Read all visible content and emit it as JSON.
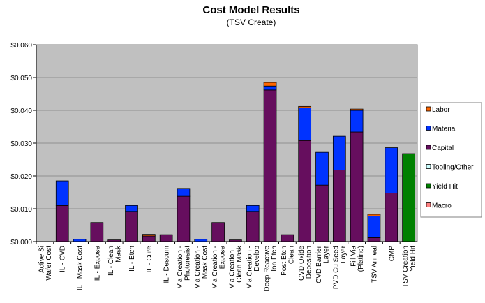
{
  "chart_data": {
    "type": "bar",
    "stacked": true,
    "title": "Cost Model Results",
    "subtitle": "(TSV Create)",
    "xlabel": "",
    "ylabel": "",
    "ylim": [
      0,
      0.06
    ],
    "yticks": [
      "$0.000",
      "$0.010",
      "$0.020",
      "$0.030",
      "$0.040",
      "$0.050",
      "$0.060"
    ],
    "grid": true,
    "legend_position": "right",
    "plot_background": "#c0c0c0",
    "categories": [
      [
        "Active Si",
        "Wafer Cost"
      ],
      [
        "IL - CVD"
      ],
      [
        "IL - Mask Cost"
      ],
      [
        "IL - Expose"
      ],
      [
        "IL - Clean",
        "Mask"
      ],
      [
        "IL - Etch"
      ],
      [
        "IL - Cure"
      ],
      [
        "IL - Descum"
      ],
      [
        "Via Creation -",
        "Photoresist"
      ],
      [
        "Via Creation -",
        "Mask Cost"
      ],
      [
        "Via Creation -",
        "Expose"
      ],
      [
        "Via Creation -",
        "Clean Mask"
      ],
      [
        "Via Creation -",
        "Develop"
      ],
      [
        "Deep Reactive",
        "Ion Etch"
      ],
      [
        "Post Etch",
        "Clean"
      ],
      [
        "CVD Oxide",
        "Deposition"
      ],
      [
        "CVD Barrier",
        "Layer"
      ],
      [
        "PVD Cu Seed",
        "Layer"
      ],
      [
        "Fill Via",
        "(Plating)"
      ],
      [
        "TSV Anneal"
      ],
      [
        "CMP"
      ],
      [
        "TSV Creation",
        "Yield Hit"
      ]
    ],
    "series": [
      {
        "name": "Labor",
        "color": "#ff6600",
        "values": [
          0,
          0,
          0,
          0,
          0,
          0,
          0.0005,
          0,
          0,
          0,
          0,
          0,
          0,
          0.0011,
          0,
          0.0004,
          0,
          0,
          0.0004,
          0.0005,
          0,
          0
        ]
      },
      {
        "name": "Material",
        "color": "#0033ff",
        "values": [
          0,
          0.0075,
          0.0007,
          0,
          0,
          0.0018,
          0,
          0,
          0.0024,
          0.0007,
          0,
          0,
          0.0018,
          0.0012,
          0,
          0.01,
          0.01,
          0.0103,
          0.0066,
          0.0066,
          0.0138,
          0
        ]
      },
      {
        "name": "Capital",
        "color": "#660e5e",
        "values": [
          0,
          0.011,
          0,
          0.0058,
          0.0005,
          0.0092,
          0.0017,
          0.0021,
          0.0138,
          0,
          0.0058,
          0.0005,
          0.0092,
          0.0462,
          0.0021,
          0.0308,
          0.0172,
          0.0218,
          0.0334,
          0.0012,
          0.0148,
          0
        ]
      },
      {
        "name": "Tooling/Other",
        "color": "#ccffff",
        "values": [
          0,
          0,
          0,
          0,
          0,
          0,
          0,
          0,
          0,
          0,
          0,
          0,
          0,
          0,
          0,
          0,
          0,
          0,
          0,
          0,
          0,
          0
        ]
      },
      {
        "name": "Yield Hit",
        "color": "#008000",
        "values": [
          0,
          0,
          0,
          0,
          0,
          0,
          0,
          0,
          0,
          0,
          0,
          0,
          0,
          0,
          0,
          0,
          0,
          0,
          0,
          0,
          0,
          0.0268
        ]
      },
      {
        "name": "Macro",
        "color": "#ff8080",
        "values": [
          0,
          0,
          0,
          0,
          0,
          0,
          0,
          0,
          0,
          0,
          0,
          0,
          0,
          0,
          0,
          0,
          0,
          0,
          0,
          0,
          0,
          0
        ]
      }
    ]
  }
}
